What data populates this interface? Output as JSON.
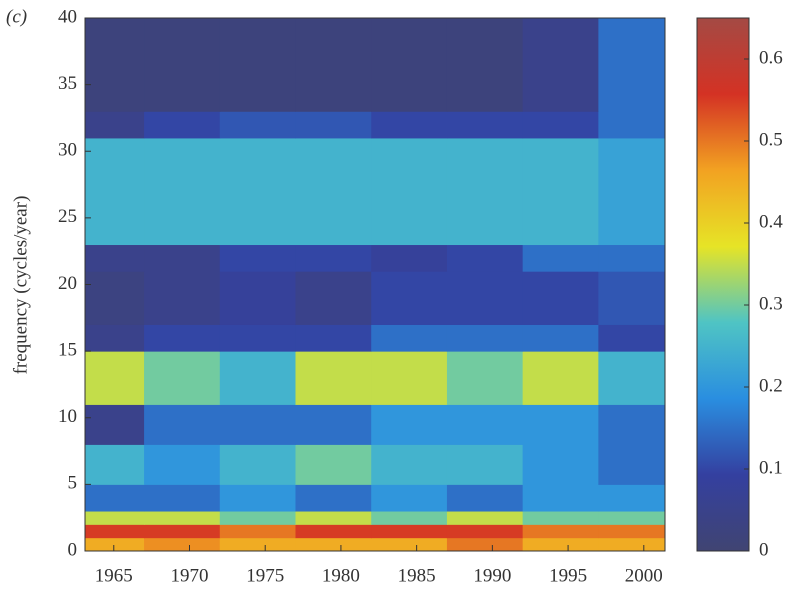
{
  "chart_data": {
    "type": "heatmap",
    "panel_label": "(c)",
    "y_label": "frequency (cycles/year)",
    "x_edges": [
      1963.1,
      1967,
      1972,
      1977,
      1982,
      1987,
      1992,
      1997,
      2001.4
    ],
    "y_edges": [
      0,
      1,
      2,
      3,
      5,
      8,
      11,
      15,
      17,
      21,
      23,
      31,
      33,
      40
    ],
    "values": [
      [
        0.45,
        0.48,
        0.45,
        0.45,
        0.45,
        0.5,
        0.45,
        0.45
      ],
      [
        0.55,
        0.55,
        0.5,
        0.55,
        0.55,
        0.55,
        0.5,
        0.5
      ],
      [
        0.35,
        0.35,
        0.3,
        0.35,
        0.3,
        0.35,
        0.3,
        0.3
      ],
      [
        0.15,
        0.15,
        0.2,
        0.15,
        0.2,
        0.15,
        0.2,
        0.2
      ],
      [
        0.25,
        0.2,
        0.25,
        0.3,
        0.25,
        0.25,
        0.2,
        0.15
      ],
      [
        0.05,
        0.15,
        0.15,
        0.15,
        0.2,
        0.2,
        0.2,
        0.15
      ],
      [
        0.35,
        0.3,
        0.25,
        0.35,
        0.35,
        0.3,
        0.35,
        0.25
      ],
      [
        0.05,
        0.1,
        0.1,
        0.1,
        0.15,
        0.15,
        0.15,
        0.1
      ],
      [
        0.03,
        0.05,
        0.08,
        0.05,
        0.1,
        0.1,
        0.1,
        0.12
      ],
      [
        0.05,
        0.05,
        0.1,
        0.1,
        0.08,
        0.1,
        0.15,
        0.15
      ],
      [
        0.25,
        0.25,
        0.25,
        0.25,
        0.25,
        0.25,
        0.25,
        0.22
      ],
      [
        0.05,
        0.1,
        0.12,
        0.12,
        0.1,
        0.1,
        0.1,
        0.15
      ],
      [
        0.02,
        0.02,
        0.02,
        0.02,
        0.02,
        0.02,
        0.05,
        0.15
      ]
    ],
    "xlim": [
      1963.1,
      2001.4
    ],
    "xticks": [
      1965,
      1970,
      1975,
      1980,
      1985,
      1990,
      1995,
      2000
    ],
    "ylim": [
      0,
      40
    ],
    "yticks": [
      0,
      5,
      10,
      15,
      20,
      25,
      30,
      35,
      40
    ],
    "clim": [
      0,
      0.65
    ],
    "cticks": [
      0,
      0.1,
      0.2,
      0.3,
      0.4,
      0.5,
      0.6
    ],
    "colormap": [
      "#404472",
      "#3440a0",
      "#2a8ee0",
      "#4fc4c4",
      "#e6e426",
      "#f2a222",
      "#d43224",
      "#a44a44"
    ]
  }
}
